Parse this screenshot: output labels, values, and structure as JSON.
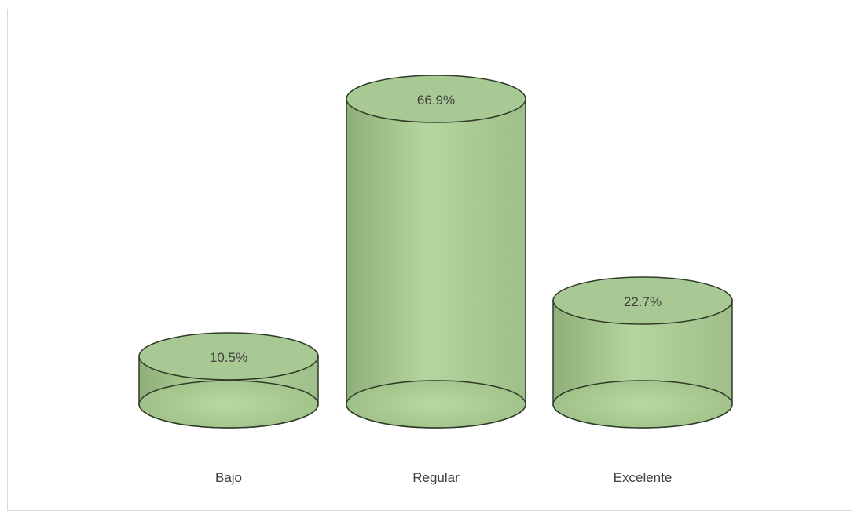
{
  "chart_data": {
    "type": "bar",
    "style": "3d-cylinder",
    "categories": [
      "Bajo",
      "Regular",
      "Excelente"
    ],
    "values": [
      10.5,
      66.9,
      22.7
    ],
    "data_labels": [
      "10.5%",
      "66.9%",
      "22.7%"
    ],
    "ylim": [
      0,
      70
    ],
    "grid": false,
    "legend": "none",
    "colors": {
      "fill_light": "#b5d69e",
      "fill_dark": "#8fae79",
      "top_fill": "#a9c994",
      "stroke": "#2f3b29",
      "frame_border": "#d9d9d9",
      "text": "#404040"
    }
  }
}
